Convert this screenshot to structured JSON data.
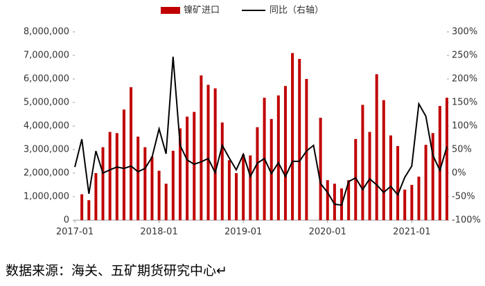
{
  "chart_data": {
    "type": "bar-line",
    "legend": "top",
    "categories": [
      "2017-01",
      null,
      null,
      null,
      null,
      null,
      null,
      null,
      null,
      null,
      null,
      null,
      "2018-01",
      null,
      null,
      null,
      null,
      null,
      null,
      null,
      null,
      null,
      null,
      null,
      "2019-01",
      null,
      null,
      null,
      null,
      null,
      null,
      null,
      null,
      null,
      null,
      null,
      "2020-01",
      null,
      null,
      null,
      null,
      null,
      null,
      null,
      null,
      null,
      null,
      null,
      "2021-01",
      null,
      null,
      null,
      null,
      null
    ],
    "series": [
      {
        "name": "镍矿进口",
        "type": "bar",
        "color": "#c00000",
        "values": [
          null,
          1100000,
          850000,
          2000000,
          3100000,
          3750000,
          3700000,
          4700000,
          5650000,
          3550000,
          3100000,
          2700000,
          2100000,
          1550000,
          2950000,
          3900000,
          4400000,
          4600000,
          6150000,
          5750000,
          5600000,
          4150000,
          2550000,
          2000000,
          2800000,
          2750000,
          3950000,
          5200000,
          4300000,
          5300000,
          5700000,
          7100000,
          6850000,
          6000000,
          null,
          4350000,
          1700000,
          1550000,
          1350000,
          1700000,
          3450000,
          4900000,
          3750000,
          6200000,
          5100000,
          3600000,
          3150000,
          1300000,
          1500000,
          1850000,
          3200000,
          3700000,
          4850000,
          5200000
        ]
      },
      {
        "name": "同比（右轴）",
        "type": "line",
        "axis": "y2",
        "color": "#000000",
        "values": [
          13,
          72,
          -44,
          47,
          0,
          7,
          13,
          10,
          15,
          3,
          10,
          34,
          94,
          41,
          247,
          59,
          28,
          19,
          24,
          31,
          1,
          59,
          32,
          7,
          40,
          -7,
          21,
          31,
          -1,
          22,
          -7,
          25,
          25,
          47,
          59,
          -22,
          -41,
          -66,
          -68,
          -18,
          -10,
          -35,
          -12,
          -25,
          -41,
          -28,
          -46,
          -9,
          15,
          147,
          121,
          38,
          6,
          56
        ]
      }
    ],
    "ylim": [
      0,
      8000000
    ],
    "yticks": [
      0,
      {
        "value": 1000000,
        "label": "1,000,000"
      },
      {
        "value": 2000000,
        "label": "2,000,000"
      },
      {
        "value": 3000000,
        "label": "3,000,000"
      },
      {
        "value": 4000000,
        "label": "4,000,000"
      },
      {
        "value": 5000000,
        "label": "5,000,000"
      },
      {
        "value": 6000000,
        "label": "6,000,000"
      },
      {
        "value": 7000000,
        "label": "7,000,000"
      },
      {
        "value": 8000000,
        "label": "8,000,000"
      }
    ],
    "y2lim": [
      -100,
      300
    ],
    "y2ticks": [
      {
        "value": -100,
        "label": "-100%"
      },
      {
        "value": -50,
        "label": "-50%"
      },
      {
        "value": 0,
        "label": "0%"
      },
      {
        "value": 50,
        "label": "50%"
      },
      {
        "value": 100,
        "label": "100%"
      },
      {
        "value": 150,
        "label": "150%"
      },
      {
        "value": 200,
        "label": "200%"
      },
      {
        "value": 250,
        "label": "250%"
      },
      {
        "value": 300,
        "label": "300%"
      }
    ],
    "grid": false,
    "source": "数据来源：海关、五矿期货研究中心↵"
  }
}
